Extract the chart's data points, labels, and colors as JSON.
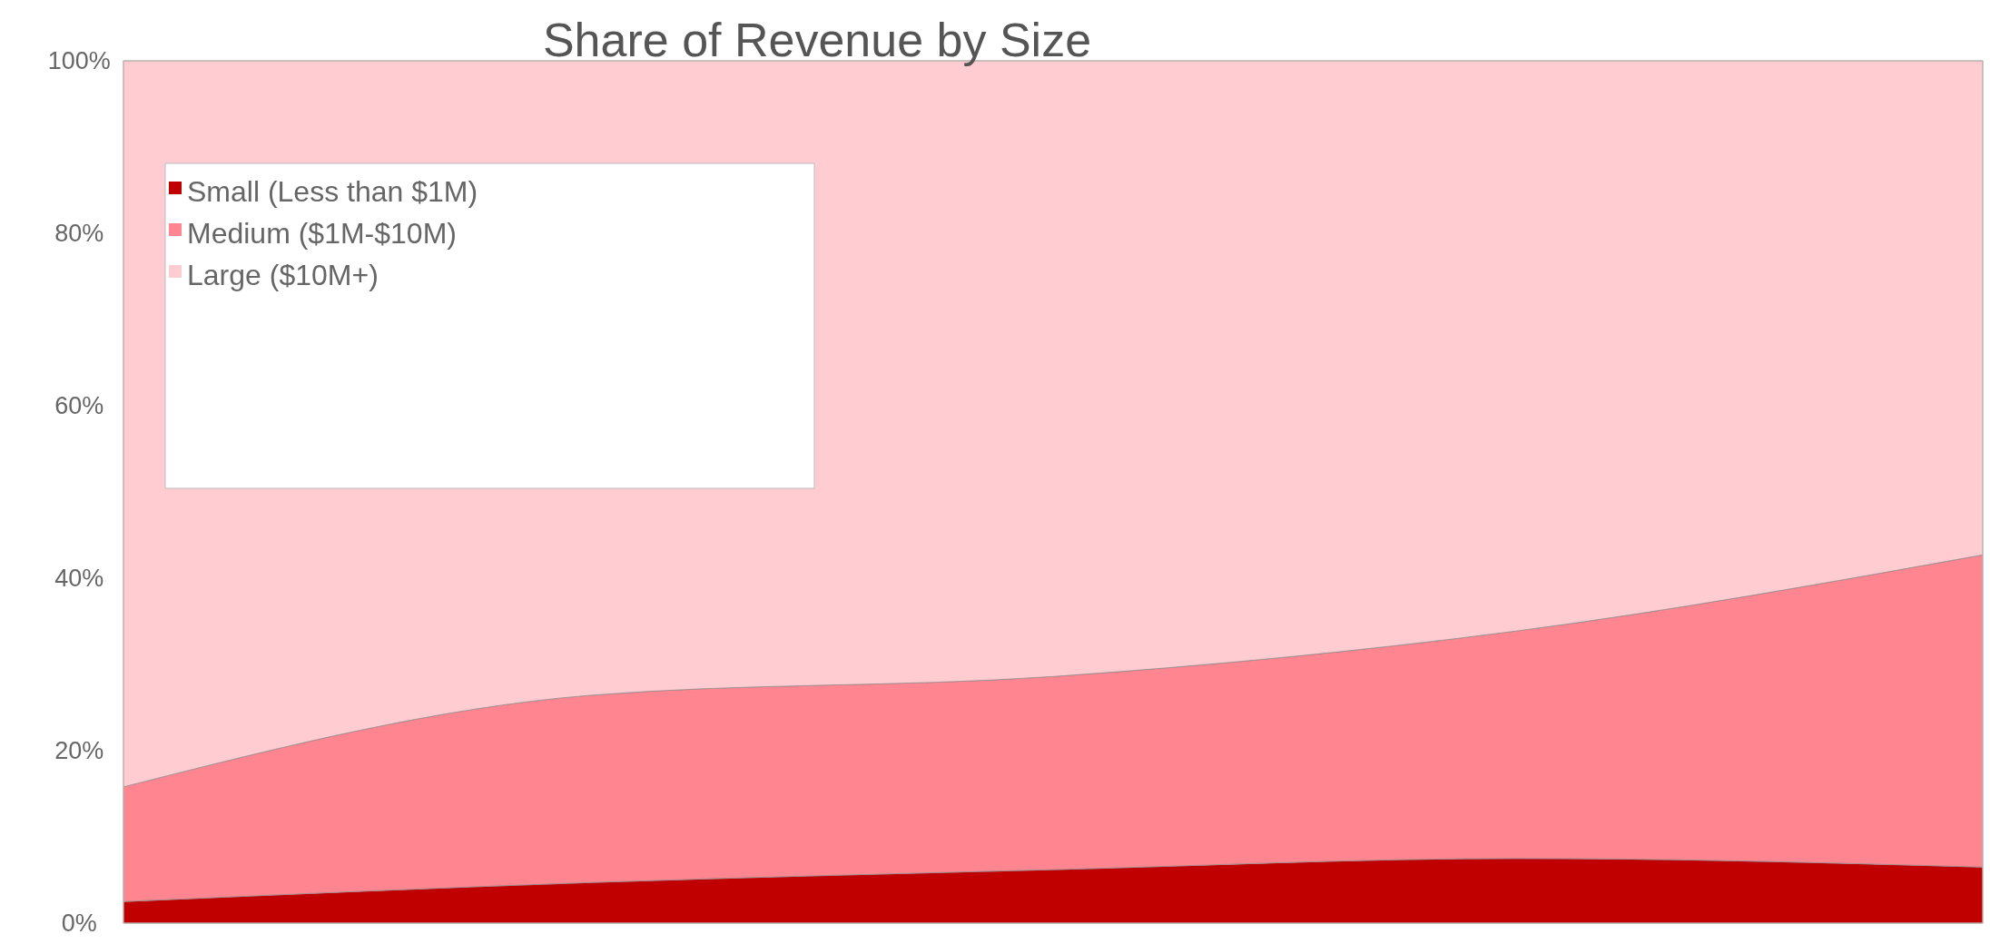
{
  "chart_data": {
    "type": "area",
    "title": "Share of Revenue by Size",
    "stacked": true,
    "categories": [
      null,
      null,
      null,
      null,
      null
    ],
    "series": [
      {
        "name": "Small (Less than $1M)",
        "color": "#c00000",
        "values": [
          2.5,
          4.7,
          6.2,
          7.5,
          6.5
        ]
      },
      {
        "name": "Medium ($1M-$10M)",
        "color": "#ff8690",
        "values": [
          13.3,
          21.7,
          22.4,
          26.4,
          36.2
        ]
      },
      {
        "name": "Large ($10M+)",
        "color": "#ffcdd1",
        "values": [
          84.2,
          73.6,
          71.4,
          66.1,
          57.3
        ]
      }
    ],
    "ylim": [
      0,
      100
    ],
    "yticks": [
      {
        "value": 0,
        "label": "0%"
      },
      {
        "value": 20,
        "label": "20%"
      },
      {
        "value": 40,
        "label": "40%"
      },
      {
        "value": 60,
        "label": "60%"
      },
      {
        "value": 80,
        "label": "80%"
      },
      {
        "value": 100,
        "label": "100%"
      }
    ],
    "legend": "top left"
  }
}
